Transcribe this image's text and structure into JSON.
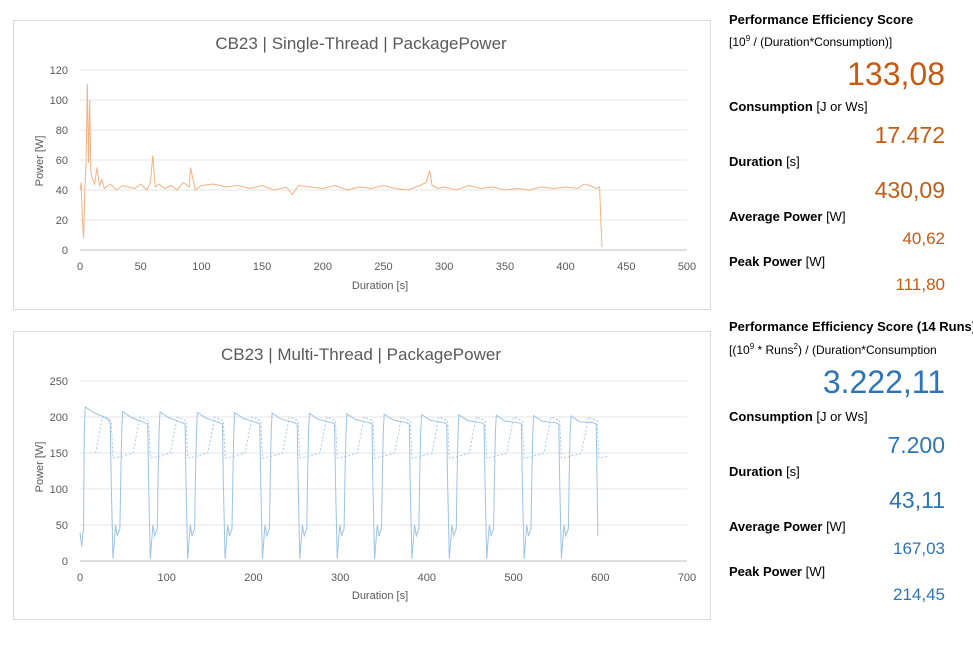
{
  "chart_data": [
    {
      "type": "line",
      "title": "CB23 | Single-Thread | PackagePower",
      "xlabel": "Duration [s]",
      "ylabel": "Power [W]",
      "xlim": [
        0,
        500
      ],
      "ylim": [
        0,
        120
      ],
      "xticks": [
        "0",
        "50",
        "100",
        "150",
        "200",
        "250",
        "300",
        "350",
        "400",
        "450",
        "500"
      ],
      "yticks": [
        "0",
        "20",
        "40",
        "60",
        "80",
        "100",
        "120"
      ],
      "color": "#f4b183",
      "series": [
        {
          "name": "",
          "x": [
            0,
            1,
            2,
            3,
            4,
            5,
            6,
            7,
            8,
            9,
            10,
            12,
            14,
            16,
            18,
            20,
            25,
            30,
            35,
            40,
            45,
            50,
            55,
            58,
            60,
            62,
            65,
            70,
            75,
            80,
            85,
            90,
            91,
            95,
            100,
            110,
            120,
            130,
            140,
            150,
            160,
            170,
            175,
            180,
            190,
            200,
            210,
            220,
            230,
            240,
            250,
            260,
            270,
            280,
            285,
            288,
            290,
            295,
            300,
            310,
            320,
            330,
            340,
            350,
            360,
            370,
            380,
            390,
            400,
            410,
            415,
            420,
            425,
            428,
            429,
            430
          ],
          "y": [
            40,
            45,
            20,
            8,
            42,
            60,
            111,
            58,
            100,
            52,
            48,
            44,
            55,
            43,
            47,
            41,
            44,
            40,
            43,
            42,
            41,
            44,
            40,
            45,
            63,
            42,
            44,
            41,
            43,
            40,
            45,
            42,
            55,
            40,
            43,
            44,
            42,
            43,
            41,
            43,
            40,
            42,
            37,
            43,
            42,
            41,
            43,
            40,
            42,
            41,
            43,
            41,
            40,
            43,
            45,
            53,
            43,
            41,
            42,
            40,
            43,
            41,
            42,
            40,
            41,
            40,
            42,
            41,
            42,
            41,
            44,
            43,
            41,
            42,
            20,
            2
          ]
        }
      ]
    },
    {
      "type": "line",
      "title": "CB23 | Multi-Thread | PackagePower",
      "xlabel": "Duration [s]",
      "ylabel": "Power [W]",
      "xlim": [
        0,
        700
      ],
      "ylim": [
        0,
        250
      ],
      "xticks": [
        "0",
        "100",
        "200",
        "300",
        "400",
        "500",
        "600",
        "700"
      ],
      "yticks": [
        "0",
        "50",
        "100",
        "150",
        "200",
        "250"
      ],
      "color": "#9dc3e6",
      "runs": 14,
      "run_period": 43.1,
      "peak_first": 214,
      "plateau_end": 190,
      "dotted_peak": 200,
      "dotted_low": 143
    }
  ],
  "panel1": {
    "score_label": "Performance Efficiency Score",
    "formula_pre": "[10",
    "formula_sup": "9",
    "formula_post": " / (Duration*Consumption)]",
    "score_value": "133,08",
    "consumption_label": "Consumption",
    "consumption_unit": " [J or Ws]",
    "consumption_value": "17.472",
    "duration_label": "Duration",
    "duration_unit": " [s]",
    "duration_value": "430,09",
    "avg_label": "Average Power",
    "avg_unit": " [W]",
    "avg_value": "40,62",
    "peak_label": "Peak Power",
    "peak_unit": " [W]",
    "peak_value": "111,80",
    "accent": "#c55a11"
  },
  "panel2": {
    "score_label": "Performance Efficiency Score (14 Runs)",
    "formula_pre": "[(10",
    "formula_sup": "9",
    "formula_mid": " * Runs",
    "formula_sup2": "2",
    "formula_post": ") / (Duration*Consumption",
    "score_value": "3.222,11",
    "consumption_label": "Consumption",
    "consumption_unit": " [J or Ws]",
    "consumption_value": "7.200",
    "duration_label": "Duration",
    "duration_unit": " [s]",
    "duration_value": "43,11",
    "avg_label": "Average Power",
    "avg_unit": " [W]",
    "avg_value": "167,03",
    "peak_label": "Peak Power",
    "peak_unit": " [W]",
    "peak_value": "214,45",
    "accent": "#2e75b6"
  }
}
